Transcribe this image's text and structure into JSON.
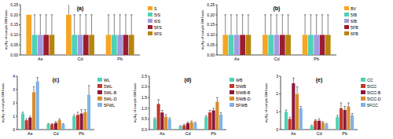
{
  "chart_data": [
    {
      "type": "bar",
      "title": "(a)",
      "y_label": "mg/kg of sample DM basis",
      "legend": "right",
      "categories": [
        "As",
        "Cd",
        "Pb"
      ],
      "ylim": [
        0,
        0.25
      ],
      "yticks": [
        {
          "value": 0,
          "label": "0.00"
        },
        {
          "value": 0.05,
          "label": "0.05"
        },
        {
          "value": 0.1,
          "label": "0.10"
        },
        {
          "value": 0.15,
          "label": "0.15"
        },
        {
          "value": 0.2,
          "label": "0.20"
        },
        {
          "value": 0.25,
          "label": "0.25"
        }
      ],
      "series": [
        {
          "name": "S",
          "color": "#f5a623",
          "values": [
            0.2,
            0.2,
            0.1
          ],
          "errors": [
            0,
            0.2,
            0.1
          ]
        },
        {
          "name": "5IS",
          "color": "#4fd1b5",
          "values": [
            0.1,
            0.1,
            0.1
          ],
          "errors": [
            0.1,
            0.1,
            0.1
          ]
        },
        {
          "name": "6IS",
          "color": "#a39be0",
          "values": [
            0.1,
            0.1,
            0.1
          ],
          "errors": [
            0.1,
            0.1,
            0.1
          ]
        },
        {
          "name": "5FS",
          "color": "#9b1c2e",
          "values": [
            0.1,
            0.1,
            0.1
          ],
          "errors": [
            0.1,
            0.1,
            0.1
          ]
        },
        {
          "name": "6FS",
          "color": "#b8860b",
          "values": [
            0.1,
            0.1,
            0.1
          ],
          "errors": [
            0.1,
            0.1,
            0.1
          ]
        }
      ]
    },
    {
      "type": "bar",
      "title": "(b)",
      "y_label": "mg/kg of sample DM basis",
      "legend": "right",
      "categories": [
        "As",
        "Cd",
        "Pb"
      ],
      "ylim": [
        0,
        0.25
      ],
      "yticks": [
        {
          "value": 0,
          "label": "0.00"
        },
        {
          "value": 0.05,
          "label": "0.05"
        },
        {
          "value": 0.1,
          "label": "0.10"
        },
        {
          "value": 0.15,
          "label": "0.15"
        },
        {
          "value": 0.2,
          "label": "0.20"
        },
        {
          "value": 0.25,
          "label": "0.25"
        }
      ],
      "series": [
        {
          "name": "BV",
          "color": "#f5a623",
          "values": [
            0.1,
            0.1,
            0.1
          ],
          "errors": [
            0.1,
            0.1,
            0.1
          ]
        },
        {
          "name": "5IB",
          "color": "#4fd1b5",
          "values": [
            0.1,
            0.1,
            0.1
          ],
          "errors": [
            0.1,
            0.1,
            0.1
          ]
        },
        {
          "name": "6IB",
          "color": "#a39be0",
          "values": [
            0.1,
            0.1,
            0.1
          ],
          "errors": [
            0.1,
            0.1,
            0.1
          ]
        },
        {
          "name": "5FB",
          "color": "#9b1c2e",
          "values": [
            0.1,
            0.1,
            0.1
          ],
          "errors": [
            0.1,
            0.1,
            0.1
          ]
        },
        {
          "name": "6FB",
          "color": "#b8860b",
          "values": [
            0.1,
            0.1,
            0.1
          ],
          "errors": [
            0.1,
            0.1,
            0.1
          ]
        }
      ]
    },
    {
      "type": "bar",
      "title": "(c)",
      "y_label": "mg/kg of sample DM basis",
      "legend": "right",
      "categories": [
        "As",
        "Cd",
        "Pb"
      ],
      "ylim": [
        0,
        4
      ],
      "yticks": [
        0,
        1,
        2,
        3,
        4
      ],
      "series": [
        {
          "name": "WL",
          "color": "#4fd1b5",
          "values": [
            1.2,
            0.4,
            1.0
          ],
          "errors": [
            0.1,
            0.05,
            0.1
          ]
        },
        {
          "name": "5WL",
          "color": "#c0392b",
          "values": [
            0.7,
            0.4,
            1.1
          ],
          "errors": [
            0.1,
            0.05,
            0.2
          ]
        },
        {
          "name": "5WL-B",
          "color": "#8b1a3a",
          "values": [
            0.9,
            0.5,
            1.2
          ],
          "errors": [
            0.1,
            0.1,
            0.3
          ]
        },
        {
          "name": "5WL-D",
          "color": "#d98c2b",
          "values": [
            2.8,
            0.7,
            1.3
          ],
          "errors": [
            0.4,
            0.1,
            0.2
          ]
        },
        {
          "name": "5FWL",
          "color": "#7fb3e6",
          "values": [
            3.6,
            0.4,
            2.6
          ],
          "errors": [
            0.3,
            0.05,
            0.7
          ]
        }
      ]
    },
    {
      "type": "bar",
      "title": "(d)",
      "y_label": "mg/kg of sample DM basis",
      "legend": "right",
      "categories": [
        "As",
        "Cd",
        "Pb"
      ],
      "ylim": [
        0,
        2.5
      ],
      "yticks": [
        {
          "value": 0,
          "label": "0.0"
        },
        {
          "value": 0.5,
          "label": "0.5"
        },
        {
          "value": 1,
          "label": "1.0"
        },
        {
          "value": 1.5,
          "label": "1.5"
        },
        {
          "value": 2,
          "label": "2.0"
        },
        {
          "value": 2.5,
          "label": "2.5"
        }
      ],
      "series": [
        {
          "name": "WB",
          "color": "#4fd1b5",
          "values": [
            0.5,
            0.15,
            0.6
          ],
          "errors": [
            0.05,
            0.03,
            0.05
          ]
        },
        {
          "name": "5IWB",
          "color": "#c0392b",
          "values": [
            1.2,
            0.2,
            0.8
          ],
          "errors": [
            0.2,
            0.05,
            0.1
          ]
        },
        {
          "name": "5IWB-B",
          "color": "#8b1a3a",
          "values": [
            0.8,
            0.3,
            0.9
          ],
          "errors": [
            0.1,
            0.05,
            0.1
          ]
        },
        {
          "name": "5IWB-D",
          "color": "#d98c2b",
          "values": [
            0.6,
            0.35,
            1.3
          ],
          "errors": [
            0.1,
            0.05,
            0.2
          ]
        },
        {
          "name": "5FWB",
          "color": "#7fb3e6",
          "values": [
            0.5,
            0.3,
            0.7
          ],
          "errors": [
            0.05,
            0.05,
            0.1
          ]
        }
      ]
    },
    {
      "type": "bar",
      "title": "(e)",
      "y_label": "mg/kg of sample DM basis",
      "legend": "right",
      "categories": [
        "As",
        "Cd",
        "Pb"
      ],
      "ylim": [
        0,
        3
      ],
      "yticks": [
        0,
        1,
        2,
        3
      ],
      "series": [
        {
          "name": "CC",
          "color": "#4fd1b5",
          "values": [
            1.0,
            0.2,
            0.7
          ],
          "errors": [
            0.1,
            0.05,
            0.1
          ]
        },
        {
          "name": "5ICC",
          "color": "#c0392b",
          "values": [
            0.6,
            0.5,
            1.2
          ],
          "errors": [
            0.1,
            0.05,
            0.3
          ]
        },
        {
          "name": "5ICC-B",
          "color": "#8b1a3a",
          "values": [
            2.6,
            0.5,
            1.1
          ],
          "errors": [
            0.3,
            0.1,
            0.2
          ]
        },
        {
          "name": "5ICC-D",
          "color": "#d98c2b",
          "values": [
            2.0,
            0.4,
            1.3
          ],
          "errors": [
            0.4,
            0.05,
            0.2
          ]
        },
        {
          "name": "5FCC",
          "color": "#7fb3e6",
          "values": [
            1.2,
            0.3,
            0.8
          ],
          "errors": [
            0.1,
            0.05,
            0.1
          ]
        }
      ]
    }
  ]
}
